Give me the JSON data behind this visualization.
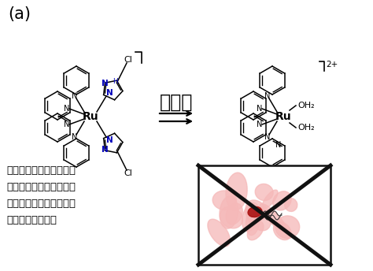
{
  "title_label": "(a)",
  "visible_light_label": "可視光",
  "description_lines": [
    "ルテニウム錠体に光を当",
    "てると、ピラゾールが解",
    "離して、がん細胞を死滅",
    "する効果がアップ"
  ],
  "bg_color": "#ffffff",
  "text_color": "#000000",
  "blue_color": "#0000bb",
  "arrow_color": "#000000",
  "cancer_color": "#f5b8b8",
  "cancer_dark": "#aa1111",
  "cross_color": "#111111"
}
